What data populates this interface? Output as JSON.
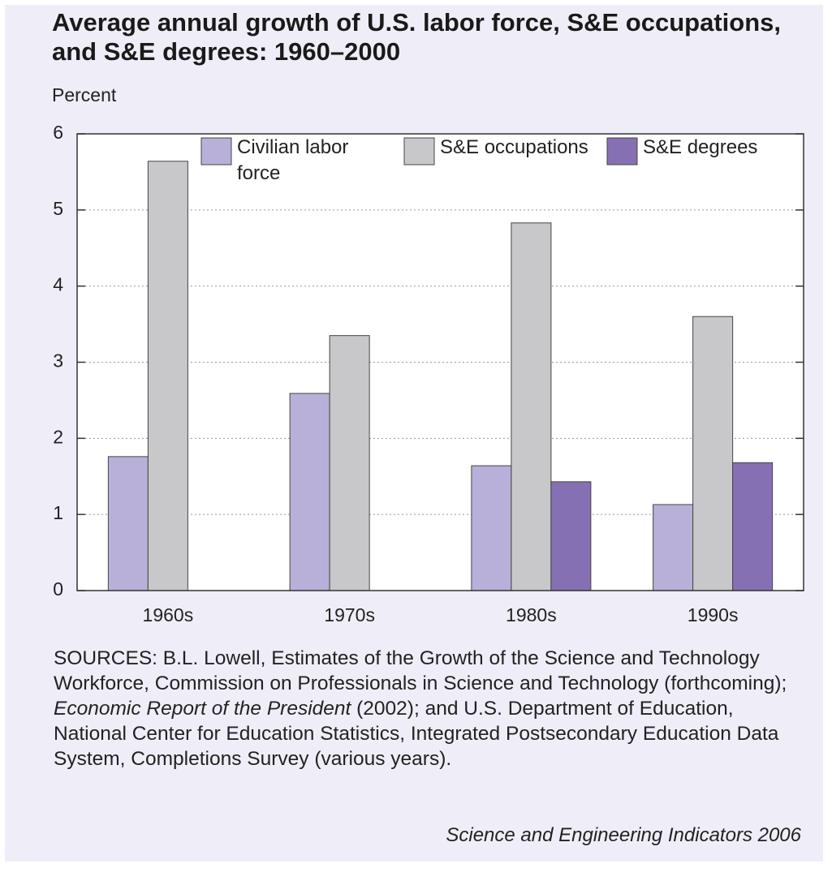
{
  "chart_data": {
    "type": "bar",
    "title": "Average annual growth of U.S. labor force, S&E occupations, and S&E degrees: 1960–2000",
    "y_label": "Percent",
    "categories": [
      "1960s",
      "1970s",
      "1980s",
      "1990s"
    ],
    "series": [
      {
        "name": "Civilian labor force",
        "color": "#b9b0d9",
        "values": [
          1.76,
          2.59,
          1.64,
          1.13
        ]
      },
      {
        "name": "S&E occupations",
        "color": "#c8c8cb",
        "values": [
          5.64,
          3.35,
          4.83,
          3.6
        ]
      },
      {
        "name": "S&E degrees",
        "color": "#8670b4",
        "values": [
          null,
          null,
          1.43,
          1.68
        ]
      }
    ],
    "ylim": [
      0,
      6
    ],
    "yticks": [
      0,
      1,
      2,
      3,
      4,
      5,
      6
    ],
    "grid": true,
    "sources": [
      "SOURCES: B.L. Lowell, Estimates of the Growth of the Science and Technology Workforce, Commission on Professionals in Science and Technology (forthcoming); ",
      "Economic Report of the President",
      " (2002); and U.S. Department of Education, National Center for Education Statistics, Integrated Postsecondary Education Data System, Completions Survey (various years)."
    ],
    "credit": "Science and Engineering Indicators 2006"
  }
}
